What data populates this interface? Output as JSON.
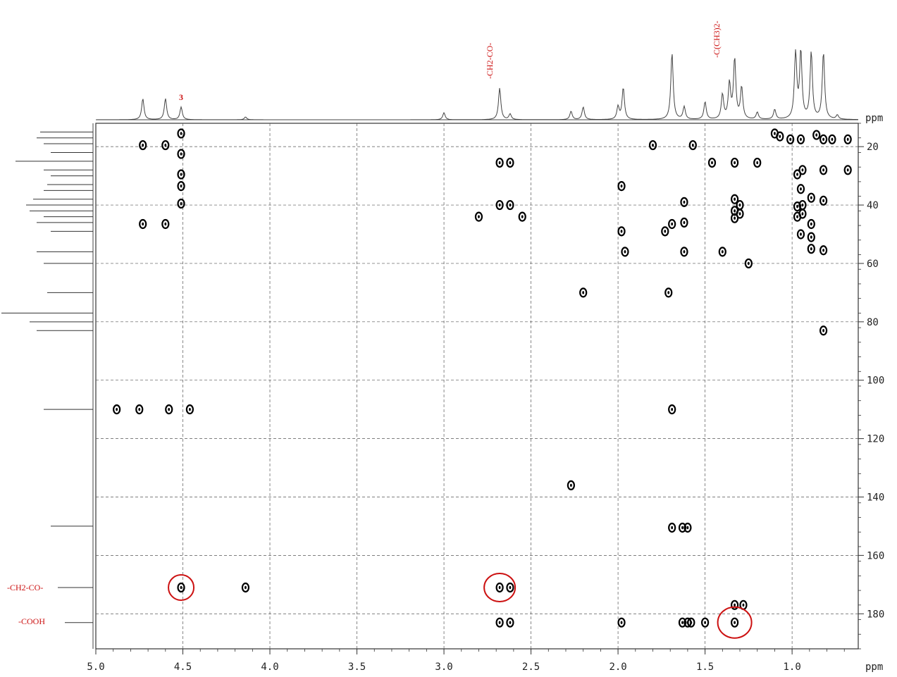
{
  "chart_data": {
    "type": "scatter",
    "title": "",
    "xlabel": "ppm",
    "ylabel": "ppm",
    "xlim": [
      5.0,
      0.62
    ],
    "ylim": [
      12,
      192
    ],
    "x_axis_reversed": true,
    "grid": "dashed at major ticks",
    "x_ticks": [
      "5.0",
      "4.5",
      "4.0",
      "3.5",
      "3.0",
      "2.5",
      "2.0",
      "1.5",
      "1.0"
    ],
    "y_ticks": [
      "20",
      "40",
      "60",
      "80",
      "100",
      "120",
      "140",
      "160",
      "180"
    ],
    "x_unit": "ppm",
    "y_unit": "ppm",
    "annotations": {
      "peak_3": "3",
      "ch2co_h": "-CH2-CO-",
      "cch3_h": "-C(CH3)2-",
      "ch2co_c": "-CH2-CO-",
      "cooh_c": "-COOH"
    },
    "colors": {
      "peaks": "#000000",
      "annotation": "#cc1111",
      "grid": "#555555"
    },
    "series": [
      {
        "points": [
          [
            4.73,
            19.5
          ],
          [
            4.6,
            19.5
          ],
          [
            4.51,
            15.5
          ],
          [
            4.51,
            22.5
          ],
          [
            4.51,
            29.5
          ],
          [
            4.51,
            33.5
          ],
          [
            4.51,
            39.5
          ],
          [
            4.73,
            46.5
          ],
          [
            4.6,
            46.5
          ],
          [
            2.68,
            25.5
          ],
          [
            2.62,
            25.5
          ],
          [
            2.68,
            40
          ],
          [
            2.62,
            40
          ],
          [
            2.8,
            44
          ],
          [
            2.55,
            44
          ],
          [
            1.98,
            33.5
          ],
          [
            1.98,
            49
          ],
          [
            1.96,
            56
          ],
          [
            1.8,
            19.5
          ],
          [
            1.57,
            19.5
          ],
          [
            1.46,
            25.5
          ],
          [
            1.2,
            25.5
          ],
          [
            1.62,
            39
          ],
          [
            1.69,
            46.5
          ],
          [
            1.62,
            46
          ],
          [
            1.73,
            49
          ],
          [
            1.62,
            56
          ],
          [
            1.25,
            60
          ],
          [
            1.4,
            56
          ],
          [
            1.33,
            25.5
          ],
          [
            1.33,
            38
          ],
          [
            1.33,
            42
          ],
          [
            1.33,
            44.5
          ],
          [
            1.3,
            40
          ],
          [
            1.3,
            43
          ],
          [
            1.1,
            15.5
          ],
          [
            1.07,
            16.5
          ],
          [
            1.01,
            17.5
          ],
          [
            0.95,
            17.5
          ],
          [
            0.86,
            16
          ],
          [
            0.82,
            17.5
          ],
          [
            0.77,
            17.5
          ],
          [
            0.68,
            17.5
          ],
          [
            0.97,
            29.5
          ],
          [
            0.94,
            28
          ],
          [
            0.82,
            28
          ],
          [
            0.68,
            28
          ],
          [
            0.95,
            34.5
          ],
          [
            0.89,
            37.5
          ],
          [
            0.82,
            38.5
          ],
          [
            0.97,
            40.5
          ],
          [
            0.94,
            40
          ],
          [
            0.97,
            44
          ],
          [
            0.94,
            43
          ],
          [
            0.89,
            46.5
          ],
          [
            0.89,
            51
          ],
          [
            0.95,
            50
          ],
          [
            0.89,
            55
          ],
          [
            0.82,
            55.5
          ],
          [
            2.2,
            70
          ],
          [
            1.71,
            70
          ],
          [
            0.82,
            83
          ],
          [
            4.88,
            110
          ],
          [
            4.75,
            110
          ],
          [
            4.58,
            110
          ],
          [
            4.46,
            110
          ],
          [
            1.69,
            110
          ],
          [
            2.27,
            136
          ],
          [
            1.69,
            150.5
          ],
          [
            1.63,
            150.5
          ],
          [
            1.6,
            150.5
          ],
          [
            4.51,
            171
          ],
          [
            2.68,
            171
          ],
          [
            2.62,
            171
          ],
          [
            4.14,
            171
          ],
          [
            2.68,
            183
          ],
          [
            2.62,
            183
          ],
          [
            1.98,
            183
          ],
          [
            1.63,
            183
          ],
          [
            1.6,
            183
          ],
          [
            1.58,
            183
          ],
          [
            1.5,
            183
          ],
          [
            1.33,
            183
          ],
          [
            1.33,
            177
          ],
          [
            1.28,
            177
          ]
        ]
      }
    ]
  }
}
